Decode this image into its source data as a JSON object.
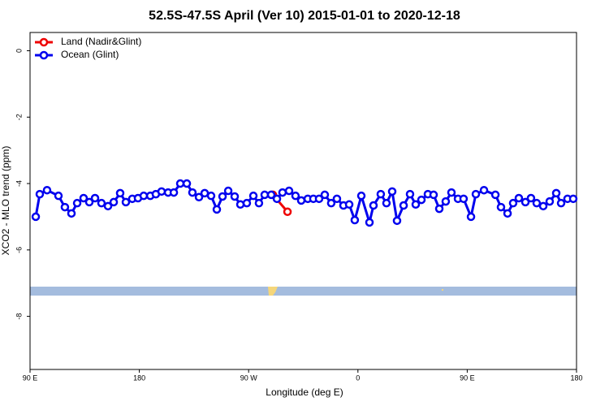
{
  "chart_data": {
    "type": "line",
    "title": "52.5S-47.5S April (Ver 10)   2015-01-01 to 2020-12-18",
    "x_label": "Longitude (deg E)",
    "y_label": "XCO2 - MLO trend (ppm)",
    "xlim": [
      90,
      540
    ],
    "ylim": [
      -9.6,
      0.55
    ],
    "xticks": [
      {
        "value": 90,
        "label": "90 E"
      },
      180,
      {
        "value": 270,
        "label": "90 W"
      },
      {
        "value": 360,
        "label": "0"
      },
      {
        "value": 450,
        "label": "90 E"
      },
      {
        "value": 540,
        "label": "180"
      }
    ],
    "yticks": [
      0,
      -2,
      -4,
      -6,
      -8
    ],
    "legend": "top-left",
    "series": [
      {
        "name": "Land (Nadir&Glint)",
        "color": "#ee0000",
        "x": [
          290.0,
          302.0
        ],
        "values": [
          -4.34,
          -4.85
        ]
      },
      {
        "name": "Ocean (Glint)",
        "color": "#0000ee",
        "x": [
          94.7,
          98.0,
          104.0,
          113.4,
          118.7,
          124.1,
          128.8,
          134.1,
          138.8,
          143.5,
          148.8,
          154.2,
          158.9,
          164.2,
          168.9,
          174.2,
          178.9,
          183.6,
          189.0,
          193.6,
          198.3,
          203.7,
          208.4,
          213.7,
          219.1,
          223.7,
          229.1,
          233.8,
          239.1,
          243.8,
          248.5,
          253.2,
          258.5,
          263.2,
          268.5,
          273.9,
          278.5,
          283.2,
          288.6,
          293.3,
          297.9,
          303.3,
          308.6,
          313.3,
          318.7,
          323.3,
          328.0,
          332.7,
          338.0,
          342.7,
          348.1,
          352.8,
          357.4,
          362.8,
          369.5,
          372.8,
          378.8,
          383.5,
          388.2,
          392.2,
          397.6,
          402.9,
          407.6,
          412.3,
          417.6,
          422.3,
          427.0,
          432.3,
          437.0,
          442.4,
          447.0,
          453.1,
          457.1,
          463.8,
          473.2,
          477.8,
          483.2,
          487.8,
          492.5,
          497.9,
          502.5,
          507.2,
          512.6,
          517.9,
          523.3,
          527.3,
          532.6,
          537.3
        ],
        "values": [
          -5.0,
          -4.32,
          -4.2,
          -4.37,
          -4.71,
          -4.9,
          -4.59,
          -4.44,
          -4.56,
          -4.44,
          -4.59,
          -4.68,
          -4.56,
          -4.29,
          -4.56,
          -4.46,
          -4.44,
          -4.37,
          -4.37,
          -4.32,
          -4.24,
          -4.27,
          -4.27,
          -4.0,
          -4.0,
          -4.27,
          -4.41,
          -4.29,
          -4.37,
          -4.78,
          -4.39,
          -4.22,
          -4.39,
          -4.63,
          -4.59,
          -4.37,
          -4.59,
          -4.34,
          -4.34,
          -4.46,
          -4.27,
          -4.22,
          -4.37,
          -4.51,
          -4.46,
          -4.46,
          -4.46,
          -4.34,
          -4.59,
          -4.46,
          -4.66,
          -4.63,
          -5.1,
          -4.37,
          -5.17,
          -4.66,
          -4.32,
          -4.59,
          -4.24,
          -5.12,
          -4.66,
          -4.32,
          -4.63,
          -4.49,
          -4.32,
          -4.34,
          -4.76,
          -4.54,
          -4.27,
          -4.46,
          -4.46,
          -5.0,
          -4.32,
          -4.2,
          -4.34,
          -4.71,
          -4.9,
          -4.59,
          -4.44,
          -4.56,
          -4.44,
          -4.59,
          -4.68,
          -4.54,
          -4.29,
          -4.59,
          -4.46,
          -4.46
        ]
      }
    ]
  }
}
